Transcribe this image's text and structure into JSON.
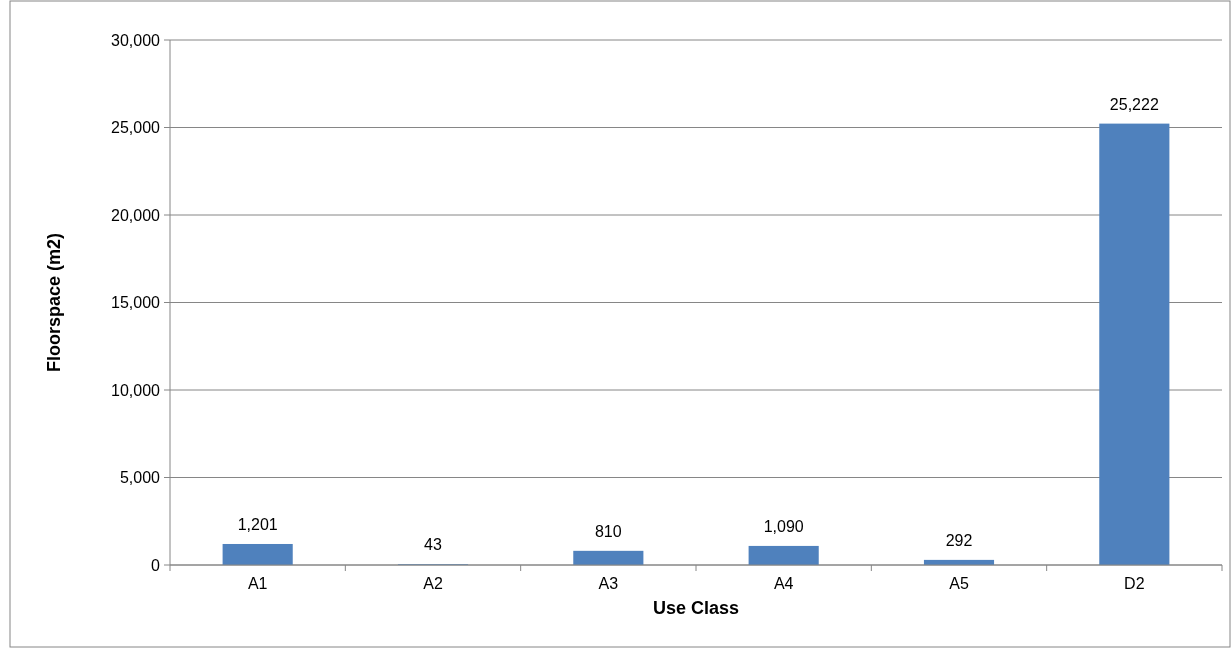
{
  "chart_data": {
    "type": "bar",
    "xlabel": "Use Class",
    "ylabel": "Floorspace (m2)",
    "categories": [
      "A1",
      "A2",
      "A3",
      "A4",
      "A5",
      "D2"
    ],
    "values": [
      1201,
      43,
      810,
      1090,
      292,
      25222
    ],
    "color": "#4f81bd",
    "ylim": [
      0,
      30000
    ],
    "yticks": [
      0,
      {
        "value": 5000,
        "label": "5,000"
      },
      {
        "value": 10000,
        "label": "10,000"
      },
      {
        "value": 15000,
        "label": "15,000"
      },
      {
        "value": 20000,
        "label": "20,000"
      },
      {
        "value": 25000,
        "label": "25,000"
      },
      {
        "value": 30000,
        "label": "30,000"
      }
    ],
    "grid": "y",
    "value_labels": [
      "1,201",
      "43",
      "810",
      "1,090",
      "292",
      "25,222"
    ]
  }
}
